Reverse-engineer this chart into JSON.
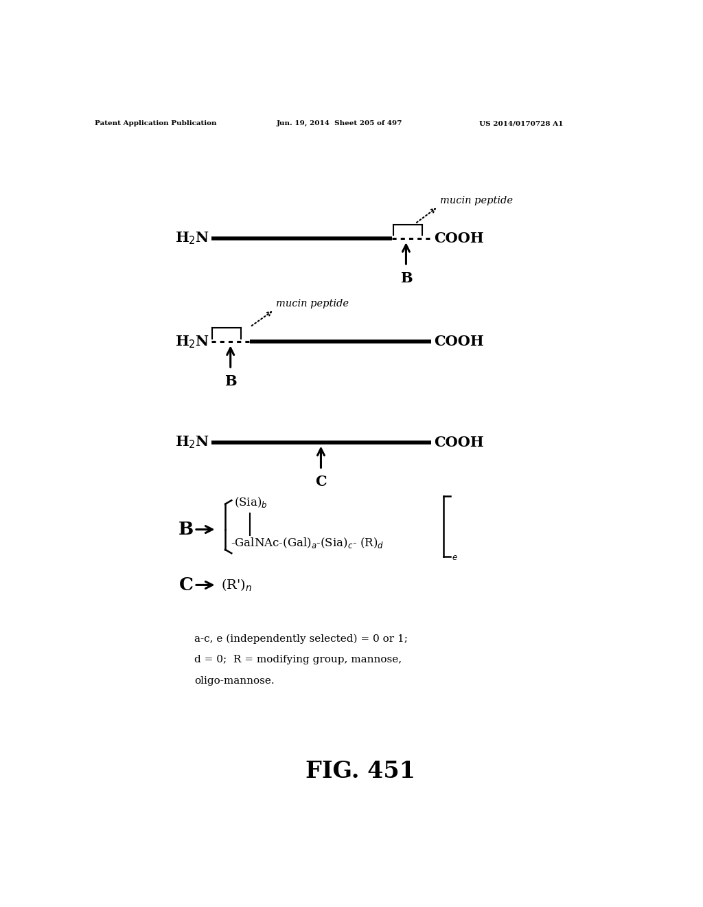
{
  "header_left": "Patent Application Publication",
  "header_mid": "Jun. 19, 2014  Sheet 205 of 497",
  "header_right": "US 2014/0170728 A1",
  "figure_label": "FIG. 451",
  "bg_color": "#ffffff",
  "text_color": "#000000"
}
